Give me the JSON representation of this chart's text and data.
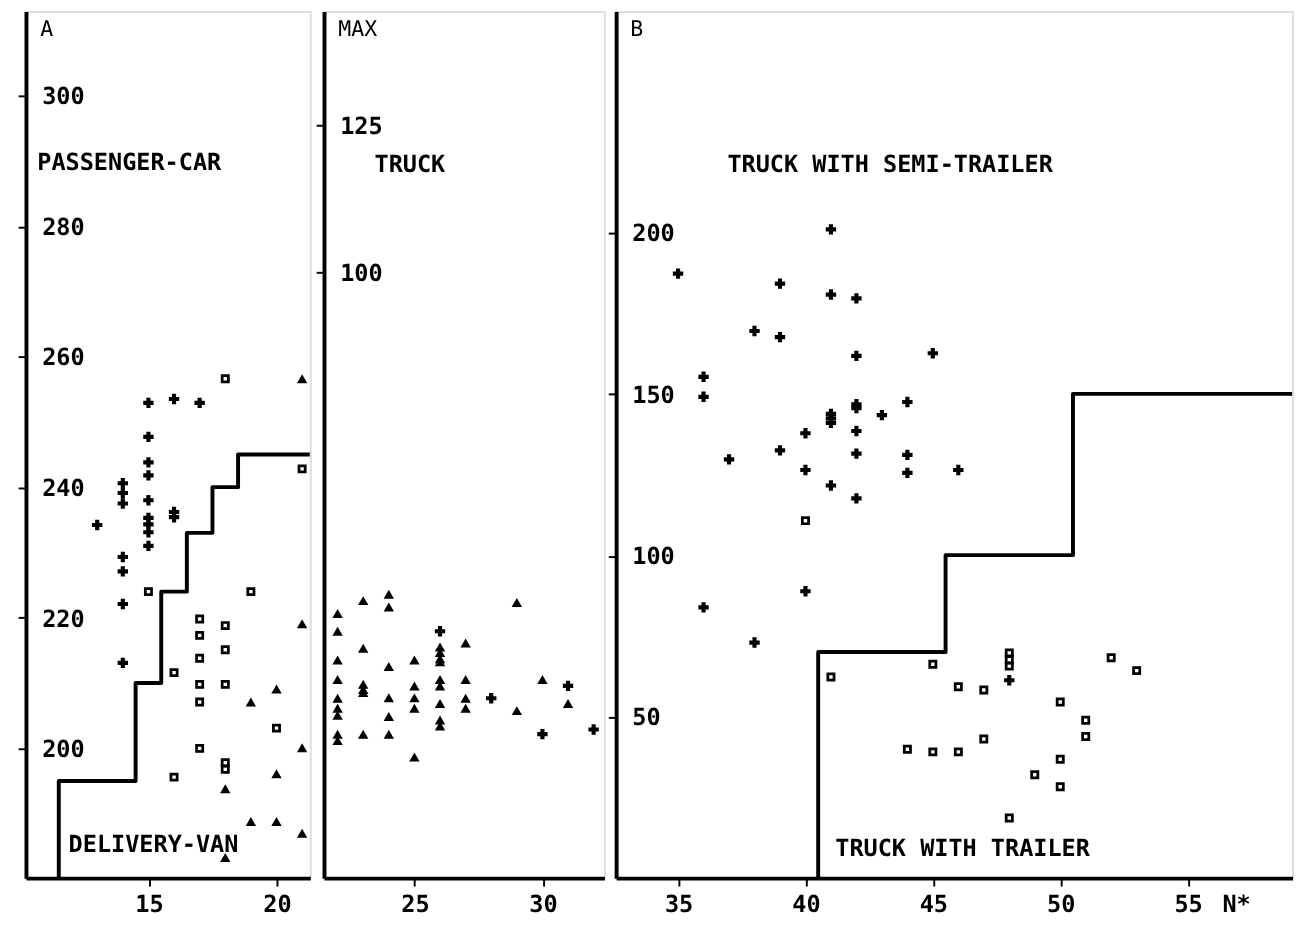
{
  "chart_data": [
    {
      "type": "scatter",
      "ylabel": "A",
      "xlim": [
        10.2,
        21.3
      ],
      "ylim": [
        180.2,
        312.9
      ],
      "xticks": [
        15,
        20
      ],
      "yticks": [
        200,
        220,
        240,
        260,
        280,
        300
      ],
      "annotations": [
        "PASSENGER-CAR",
        "DELIVERY-VAN"
      ],
      "grid": false,
      "series": [
        {
          "type": "scatter",
          "marker": "cross",
          "color": "#000000",
          "x": [
            13,
            14,
            14,
            14,
            14,
            14,
            14,
            14,
            15,
            15,
            15,
            15,
            15,
            15,
            15,
            15,
            15,
            16,
            16,
            16,
            17
          ],
          "values": [
            234.2,
            240.6,
            239.1,
            237.5,
            229.3,
            227.1,
            222.1,
            213.1,
            252.9,
            247.7,
            243.8,
            241.8,
            238,
            235.3,
            234.3,
            233.1,
            231,
            253.5,
            236.2,
            235.4,
            252.9
          ]
        },
        {
          "type": "scatter",
          "marker": "square",
          "color": "#000000",
          "x": [
            15,
            16,
            16,
            17,
            17,
            17,
            17,
            17,
            17,
            18,
            18,
            18,
            18,
            18,
            18,
            19,
            20,
            21
          ],
          "values": [
            224,
            211.6,
            195.6,
            219.8,
            217.3,
            213.8,
            209.8,
            207.1,
            200,
            256.6,
            218.8,
            215.1,
            209.8,
            197.8,
            196.8,
            224,
            203.1,
            242.8
          ]
        },
        {
          "type": "scatter",
          "marker": "triangle",
          "color": "#000000",
          "x": [
            18,
            18,
            19,
            19,
            20,
            20,
            20,
            21,
            21,
            21,
            21
          ],
          "values": [
            193.8,
            183.3,
            207.1,
            188.8,
            209.1,
            196.1,
            188.8,
            256.6,
            219.1,
            200.1,
            187
          ]
        },
        {
          "type": "step",
          "color": "#000000",
          "x": [
            11.5,
            11.5,
            14.5,
            15.5,
            16.5,
            17.5,
            18.5,
            21.3
          ],
          "values": [
            180.2,
            195,
            210,
            224,
            233,
            240,
            245,
            245
          ]
        }
      ]
    },
    {
      "type": "scatter",
      "ylabel": "MAX",
      "xlim": [
        21.45,
        32.4
      ],
      "ylim": [
        -3,
        144.33
      ],
      "xticks": [
        25,
        30
      ],
      "yticks": [
        100,
        125
      ],
      "annotations": [
        "TRUCK"
      ],
      "grid": false,
      "series": [
        {
          "type": "scatter",
          "marker": "triangle",
          "color": "#000000",
          "x": [
            22,
            22,
            22,
            22,
            22,
            22,
            22,
            22,
            22,
            23,
            23,
            23,
            23,
            23,
            23,
            24,
            24,
            24,
            24,
            24,
            24,
            25,
            25,
            25,
            25,
            25,
            26,
            26,
            26,
            26,
            26,
            26,
            26,
            26,
            26,
            27,
            27,
            27,
            27,
            29,
            29,
            30,
            31
          ],
          "values": [
            41.9,
            38.9,
            34,
            30.7,
            27.5,
            25.8,
            24.6,
            21.4,
            20.3,
            44.1,
            36,
            29.9,
            29,
            28.5,
            21.4,
            45.2,
            43,
            32.9,
            27.6,
            24.4,
            21.4,
            34,
            29.6,
            27.6,
            25.8,
            17.5,
            36.2,
            35.3,
            34.2,
            33.7,
            30.7,
            29.6,
            26.6,
            23.8,
            22.8,
            36.9,
            30.7,
            27.5,
            25.8,
            43.8,
            25.4,
            30.7,
            26.6
          ]
        },
        {
          "type": "scatter",
          "marker": "cross",
          "color": "#000000",
          "x": [
            26,
            28,
            30,
            31,
            32
          ],
          "values": [
            38.9,
            27.5,
            21.4,
            29.6,
            22.2
          ]
        }
      ]
    },
    {
      "type": "scatter",
      "ylabel": "B",
      "xlabel": "N*",
      "xlim": [
        32.55,
        59.1
      ],
      "ylim": [
        0,
        268.7
      ],
      "xticks": [
        35,
        40,
        45,
        50,
        55
      ],
      "yticks": [
        50,
        100,
        150,
        200
      ],
      "annotations": [
        "TRUCK WITH SEMI-TRAILER",
        "TRUCK WITH TRAILER"
      ],
      "grid": false,
      "series": [
        {
          "type": "scatter",
          "marker": "cross",
          "color": "#000000",
          "x": [
            41,
            35,
            39,
            41,
            42,
            38,
            39,
            42,
            45,
            36,
            36,
            41,
            41,
            41,
            42,
            42,
            43,
            44,
            40,
            42,
            37,
            39,
            42,
            44,
            44,
            40,
            46,
            41,
            42,
            40,
            36,
            38,
            48
          ],
          "values": [
            201,
            187.3,
            184.2,
            180.8,
            179.6,
            169.5,
            167.6,
            161.8,
            162.6,
            155.3,
            149.1,
            143.8,
            142.4,
            141,
            146.8,
            145.6,
            143.4,
            147.5,
            137.8,
            138.5,
            129.7,
            132.5,
            131.5,
            131.1,
            125.5,
            126.4,
            126.4,
            121.6,
            117.6,
            88.8,
            83.8,
            72.9,
            61.2
          ]
        },
        {
          "type": "scatter",
          "marker": "square",
          "color": "#000000",
          "x": [
            40,
            41,
            45,
            46,
            47,
            48,
            48,
            48,
            50,
            51,
            51,
            47,
            44,
            45,
            46,
            50,
            49,
            50,
            48,
            52,
            53
          ],
          "values": [
            110.7,
            62.2,
            66.2,
            59.2,
            58.2,
            69.7,
            67.6,
            65.6,
            54.5,
            48.8,
            43.8,
            43,
            39.8,
            39,
            39,
            36.7,
            31.9,
            28.2,
            18.5,
            68.2,
            64.2
          ]
        },
        {
          "type": "step",
          "color": "#000000",
          "x": [
            40.5,
            40.5,
            45.5,
            50.5,
            59.1
          ],
          "values": [
            0,
            70,
            100,
            150,
            150
          ]
        }
      ]
    }
  ]
}
